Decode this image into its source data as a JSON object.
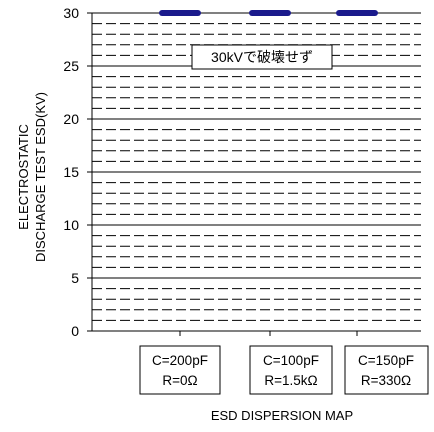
{
  "chart_data": {
    "type": "scatter",
    "title": "",
    "xlabel": "ESD DISPERSION MAP",
    "ylabel_lines": [
      "ELECTROSTATIC",
      "DISCHARGE TEST ESD(KV)"
    ],
    "ylim": [
      0,
      30
    ],
    "y_ticks": [
      "0",
      "5",
      "10",
      "15",
      "20",
      "25",
      "30"
    ],
    "y_minor_step": 1,
    "grid": true,
    "categories": [
      [
        "C=200pF",
        "R=0Ω"
      ],
      [
        "C=100pF",
        "R=1.5kΩ"
      ],
      [
        "C=150pF",
        "R=330Ω"
      ]
    ],
    "series": [
      {
        "values": [
          30,
          30,
          30
        ],
        "color": "#1a1a8c"
      }
    ],
    "annotation": "30kVで破壊せず",
    "colors": {
      "marker": "#1a1a8c",
      "grid": "#000000"
    }
  }
}
